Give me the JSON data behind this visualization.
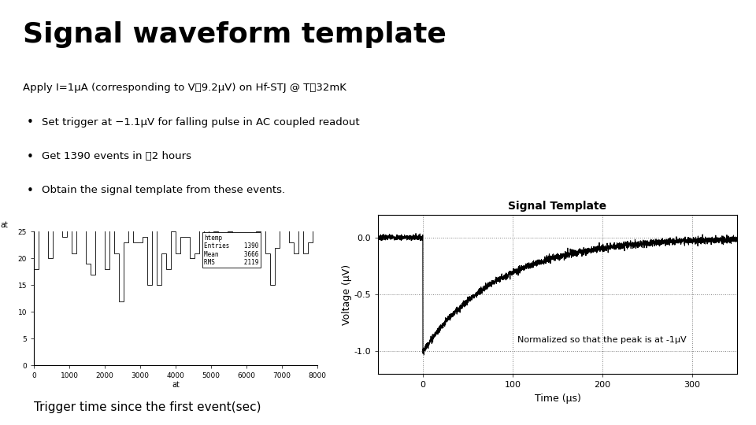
{
  "title": "Signal waveform template",
  "subtitle": "Apply I=1μA (corresponding to V～9.2μV) on Hf-STJ @ T～32mK",
  "bullets": [
    "Set trigger at −1.1μV for falling pulse in AC coupled readout",
    "Get 1390 events in ～2 hours",
    "Obtain the signal template from these events."
  ],
  "caption_left": "Trigger time since the first event(sec)",
  "hist_title": "htemp",
  "hist_stats_keys": [
    "Entries",
    "Mean",
    "RMS"
  ],
  "hist_stats_vals": [
    "1390",
    "3666",
    "2119"
  ],
  "hist_xlabel": "at",
  "hist_ylabel": "at",
  "hist_xlim": [
    0,
    8000
  ],
  "hist_ylim": [
    0,
    25
  ],
  "hist_yticks": [
    0,
    5,
    10,
    15,
    20,
    25
  ],
  "hist_xticks": [
    0,
    1000,
    2000,
    3000,
    4000,
    5000,
    6000,
    7000,
    8000
  ],
  "signal_title": "Signal Template",
  "signal_xlabel": "Time (μs)",
  "signal_ylabel": "Voltage (μV)",
  "signal_xlim": [
    -50,
    350
  ],
  "signal_ylim": [
    -1.2,
    0.2
  ],
  "signal_yticks": [
    -1.0,
    -0.5,
    0.0
  ],
  "signal_xticks": [
    0,
    100,
    200,
    300
  ],
  "signal_annotation": "Normalized so that the peak is at -1μV",
  "bg_color": "#ffffff",
  "signal_tau": 85.0,
  "signal_noise_pre": 0.012,
  "signal_noise_post": 0.015
}
